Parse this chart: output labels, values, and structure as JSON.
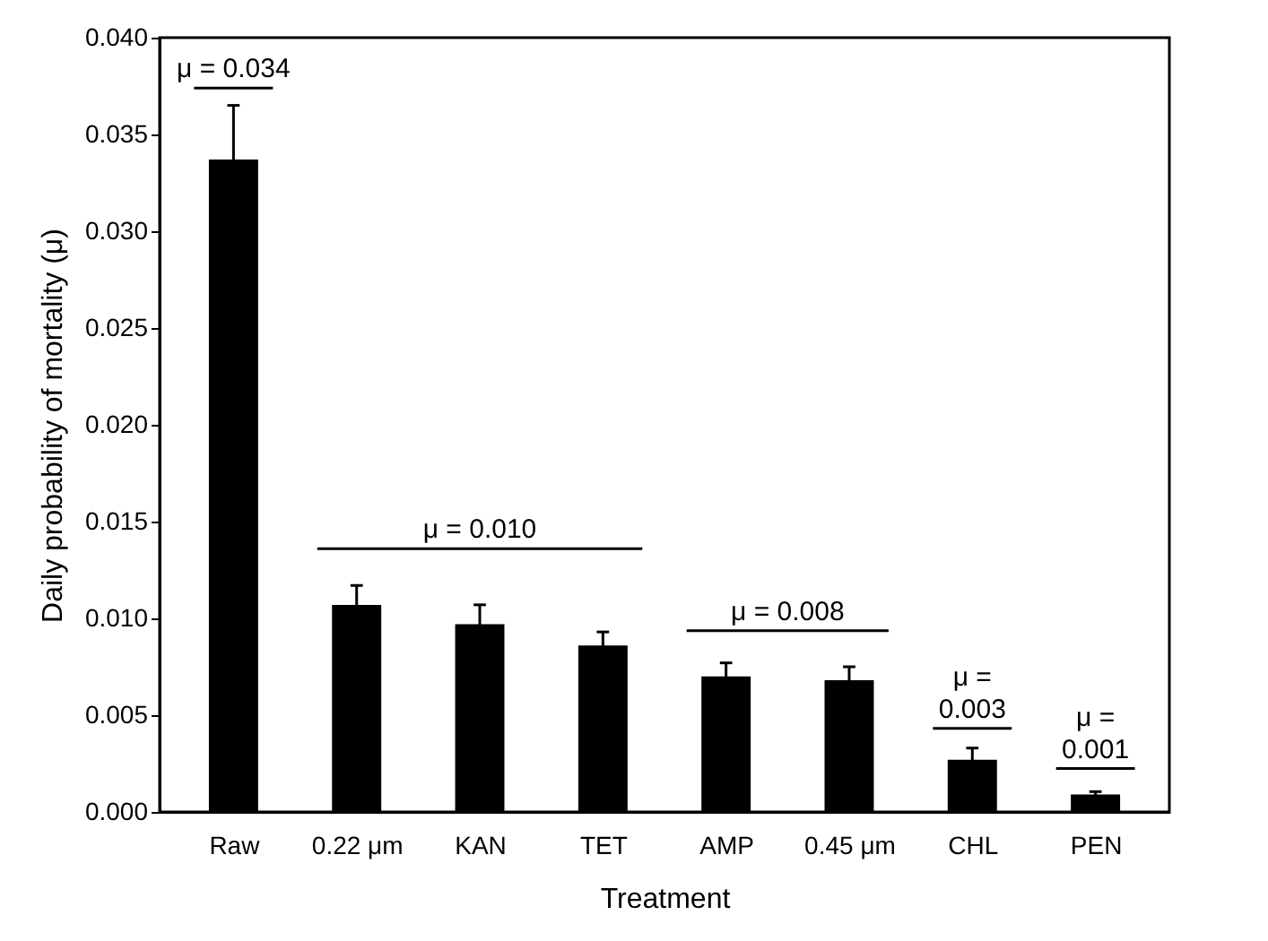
{
  "chart_data": {
    "type": "bar",
    "xlabel": "Treatment",
    "ylabel": "Daily probability of mortality (μ)",
    "categories": [
      "Raw",
      "0.22 μm",
      "KAN",
      "TET",
      "AMP",
      "0.45 μm",
      "CHL",
      "PEN"
    ],
    "values": [
      0.0337,
      0.0107,
      0.0097,
      0.0086,
      0.007,
      0.0068,
      0.0027,
      0.0009
    ],
    "errors": [
      0.0028,
      0.001,
      0.001,
      0.0007,
      0.0007,
      0.0007,
      0.0006,
      0.00015
    ],
    "color": "#000000",
    "ylim": [
      0,
      0.04
    ],
    "yticks": [
      {
        "value": 0,
        "label": "0.000"
      },
      {
        "value": 0.005,
        "label": "0.005"
      },
      {
        "value": 0.01,
        "label": "0.010"
      },
      {
        "value": 0.015,
        "label": "0.015"
      },
      {
        "value": 0.02,
        "label": "0.020"
      },
      {
        "value": 0.025,
        "label": "0.025"
      },
      {
        "value": 0.03,
        "label": "0.030"
      },
      {
        "value": 0.035,
        "label": "0.035"
      },
      {
        "value": 0.04,
        "label": "0.040"
      }
    ],
    "annotations": [
      "μ = 0.034",
      "μ = 0.010",
      "μ = 0.008",
      "μ = 0.003",
      "μ = 0.001"
    ],
    "grid": false
  }
}
